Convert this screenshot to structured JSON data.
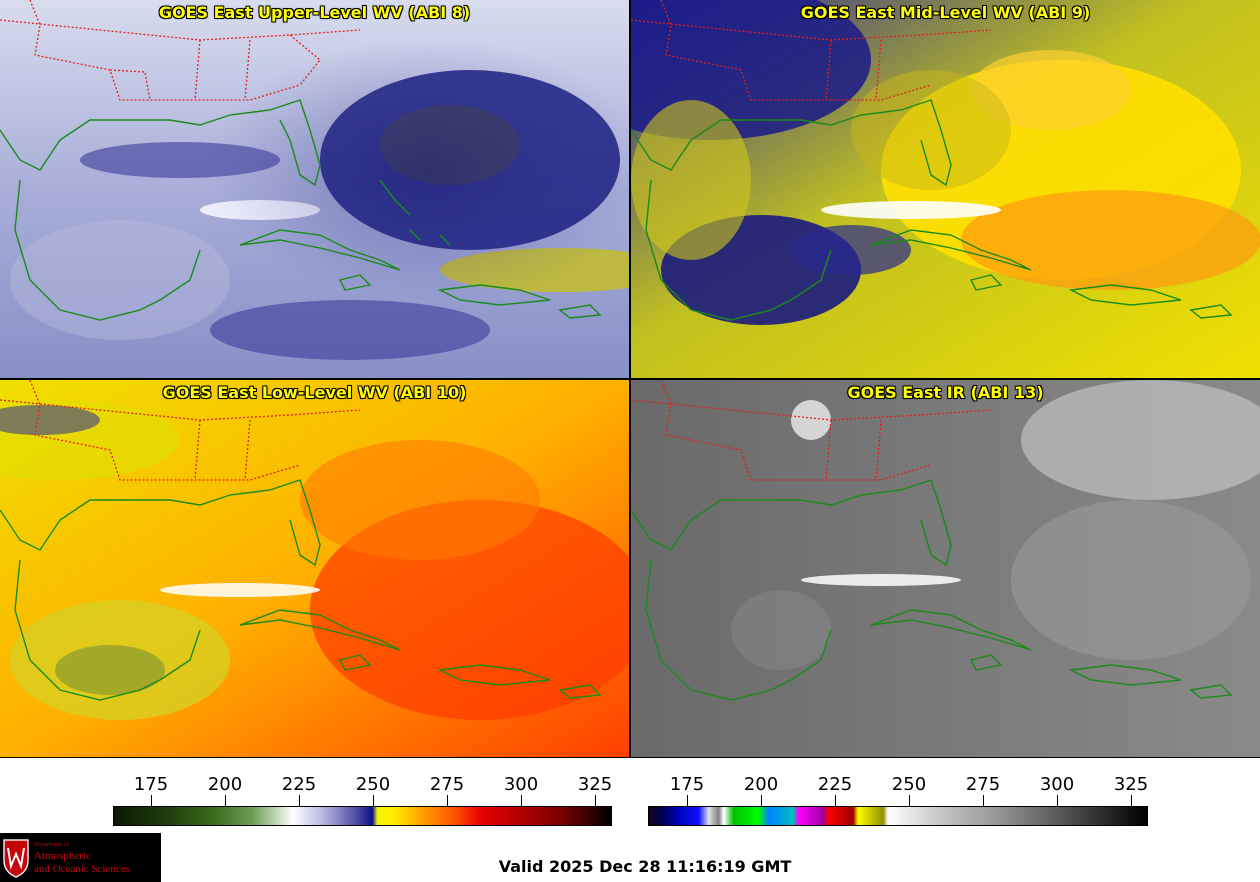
{
  "panels": [
    {
      "id": "p1",
      "title": "GOES East Upper-Level WV (ABI 8)",
      "palette": "wv-upper"
    },
    {
      "id": "p2",
      "title": "GOES East Mid-Level WV (ABI 9)",
      "palette": "wv-mid"
    },
    {
      "id": "p3",
      "title": "GOES East Low-Level WV (ABI 10)",
      "palette": "wv-low"
    },
    {
      "id": "p4",
      "title": "GOES East IR (ABI 13)",
      "palette": "ir"
    }
  ],
  "colorbars": {
    "wv": {
      "ticks": [
        "175",
        "200",
        "225",
        "250",
        "275",
        "300",
        "325"
      ]
    },
    "ir": {
      "ticks": [
        "175",
        "200",
        "225",
        "250",
        "275",
        "300",
        "325"
      ]
    }
  },
  "logo": {
    "dept": "Department of",
    "line1": "Atmospheric",
    "line2": "and Oceanic Sciences"
  },
  "valid_time": "Valid 2025 Dec 28 11:16:19 GMT",
  "colors": {
    "coastline": "#1a8a1a",
    "state_borders": "#e02020",
    "title_text": "#ffff00"
  }
}
